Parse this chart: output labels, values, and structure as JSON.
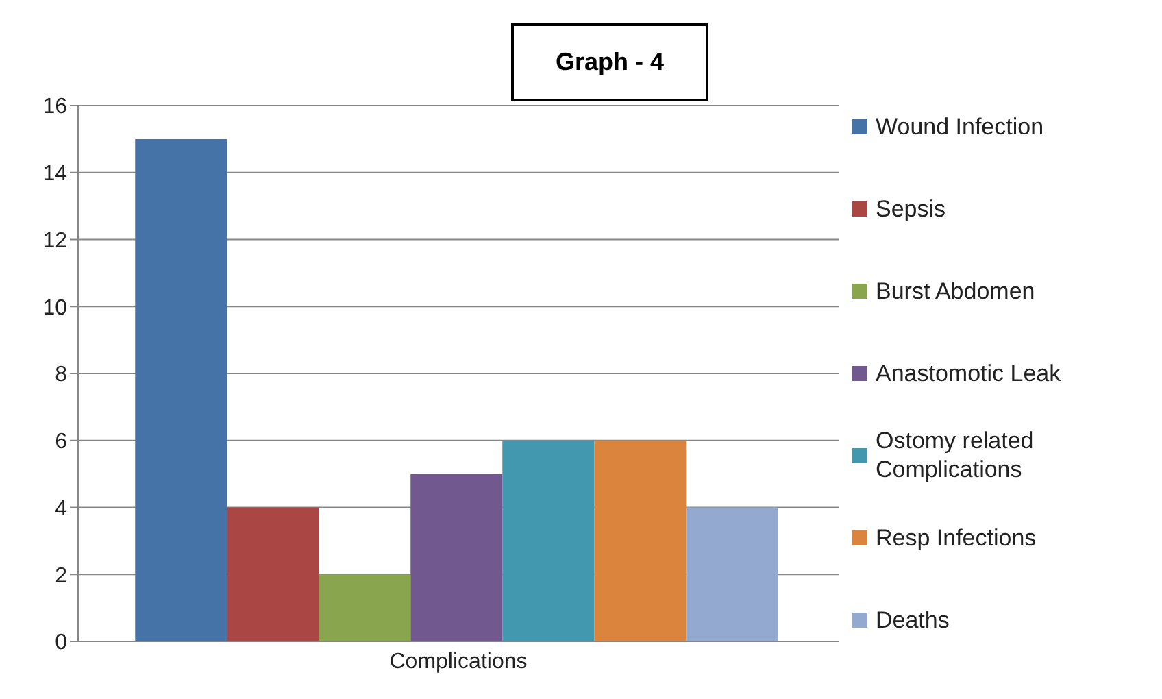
{
  "chart_data": {
    "type": "bar",
    "title": "Graph - 4",
    "categories": [
      "Complications"
    ],
    "series": [
      {
        "name": "Wound Infection",
        "color": "#4572a7",
        "values": [
          15
        ]
      },
      {
        "name": "Sepsis",
        "color": "#aa4643",
        "values": [
          4
        ]
      },
      {
        "name": "Burst Abdomen",
        "color": "#89a54e",
        "values": [
          2
        ]
      },
      {
        "name": "Anastomotic Leak",
        "color": "#71588f",
        "values": [
          5
        ]
      },
      {
        "name": "Ostomy related Complications",
        "color": "#4198af",
        "values": [
          6
        ]
      },
      {
        "name": "Resp Infections",
        "color": "#db843d",
        "values": [
          6
        ]
      },
      {
        "name": "Deaths",
        "color": "#93a9cf",
        "values": [
          4
        ]
      }
    ],
    "ylim": [
      0,
      16
    ],
    "yticks": [
      0,
      2,
      4,
      6,
      8,
      10,
      12,
      14,
      16
    ],
    "grid": "y",
    "legend": "right"
  }
}
